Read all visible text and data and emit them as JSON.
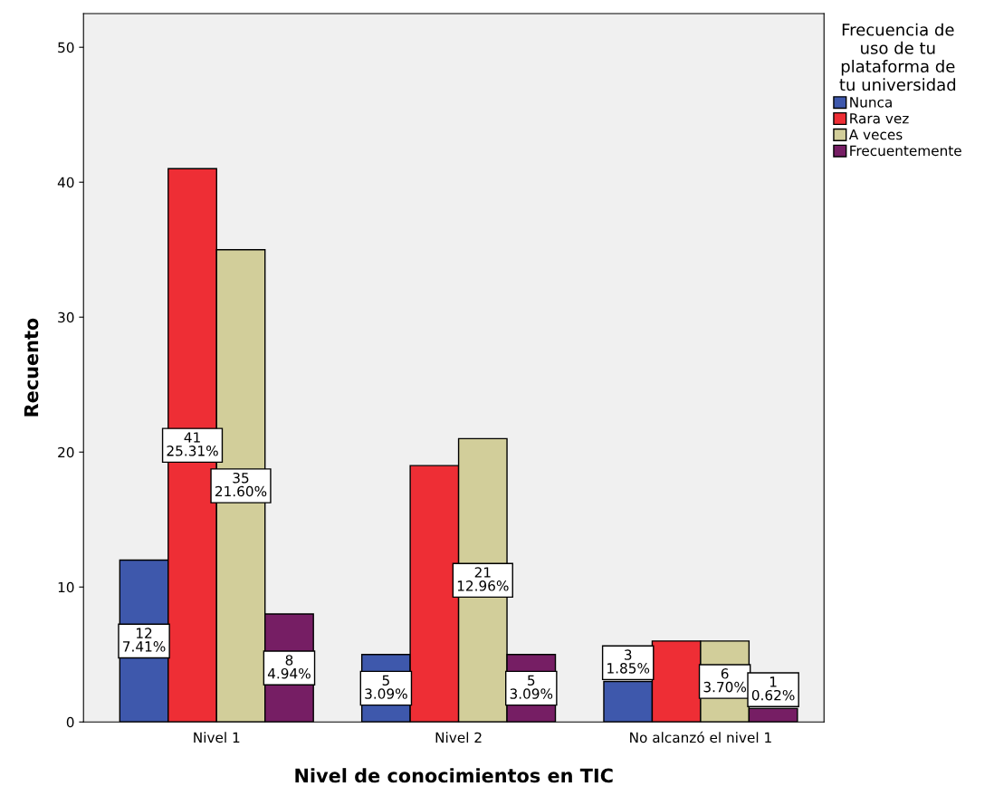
{
  "chart_data": {
    "type": "bar",
    "xlabel": "Nivel de conocimientos en TIC",
    "ylabel": "Recuento",
    "categories": [
      "Nivel 1",
      "Nivel 2",
      "No alcanzó el nivel 1"
    ],
    "series": [
      {
        "name": "Nunca",
        "color": "#3e58ac",
        "values": [
          12,
          5,
          3
        ],
        "value_labels": [
          "12\n7.41%",
          "5\n3.09%",
          "3\n1.85%"
        ]
      },
      {
        "name": "Rara vez",
        "color": "#ee2e35",
        "values": [
          41,
          19,
          6
        ],
        "value_labels": [
          "41\n25.31%",
          null,
          null
        ]
      },
      {
        "name": "A veces",
        "color": "#d2ce9a",
        "values": [
          35,
          21,
          6
        ],
        "value_labels": [
          "35\n21.60%",
          "21\n12.96%",
          "6\n3.70%"
        ]
      },
      {
        "name": "Frecuentemente",
        "color": "#761e64",
        "values": [
          8,
          5,
          1
        ],
        "value_labels": [
          "8\n4.94%",
          "5\n3.09%",
          "1\n0.62%"
        ]
      }
    ],
    "legend_title": "Frecuencia de\nuso de tu\nplataforma de\ntu universidad",
    "legend": "top right",
    "grid": false,
    "ylim": [
      0,
      52.5
    ],
    "yticks": [
      0,
      10,
      20,
      30,
      40,
      50
    ]
  }
}
